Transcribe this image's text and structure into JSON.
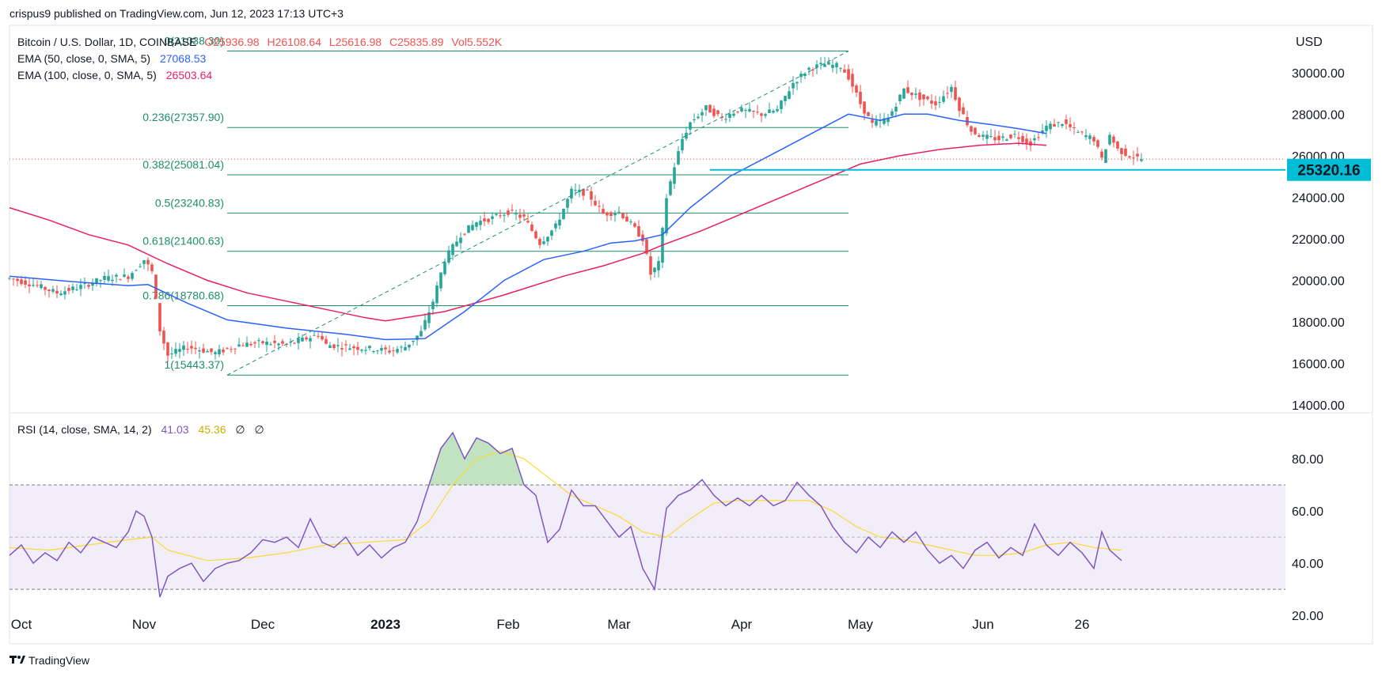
{
  "header": {
    "published": "crispus9 published on TradingView.com, Jun 12, 2023 17:13 UTC+3"
  },
  "footer": {
    "brand": "TradingView",
    "logo_icon": "tradingview-logo-icon"
  },
  "chart_data": {
    "type": "candlestick",
    "title": "Bitcoin / U.S. Dollar, 1D, COINBASE",
    "ohlc_label": {
      "o": "O25936.98",
      "h": "H26108.64",
      "l": "L25616.98",
      "c": "C25835.89",
      "vol": "Vol5.552K"
    },
    "currency": "USD",
    "ylim": [
      13700,
      32200
    ],
    "y_ticks": [
      "14000.00",
      "16000.00",
      "18000.00",
      "20000.00",
      "22000.00",
      "24000.00",
      "26000.00",
      "28000.00",
      "30000.00"
    ],
    "x_ticks": [
      {
        "label": "Oct",
        "day": 3
      },
      {
        "label": "Nov",
        "day": 34
      },
      {
        "label": "Dec",
        "day": 64
      },
      {
        "label": "2023",
        "day": 95
      },
      {
        "label": "Feb",
        "day": 126
      },
      {
        "label": "Mar",
        "day": 154
      },
      {
        "label": "Apr",
        "day": 185
      },
      {
        "label": "May",
        "day": 215
      },
      {
        "label": "Jun",
        "day": 246
      },
      {
        "label": "26",
        "day": 271
      }
    ],
    "last_price": {
      "value": 25835.89,
      "color": "#ef5350"
    },
    "horizontal_line": {
      "value": 25320.16,
      "label": "25320.16",
      "color": "#00bcd4"
    },
    "fibonacci": {
      "color": "#1e8e6e",
      "levels": [
        {
          "label": "0(31038.30)",
          "value": 31038.3
        },
        {
          "label": "0.236(27357.90)",
          "value": 27357.9
        },
        {
          "label": "0.382(25081.04)",
          "value": 25081.04
        },
        {
          "label": "0.5(23240.83)",
          "value": 23240.83
        },
        {
          "label": "0.618(21400.63)",
          "value": 21400.63
        },
        {
          "label": "0.786(18780.68)",
          "value": 18780.68
        },
        {
          "label": "1(15443.37)",
          "value": 15443.37
        }
      ]
    },
    "trend_line": {
      "from": {
        "day": 55,
        "value": 15443.37
      },
      "to": {
        "day": 212,
        "value": 31038.3
      }
    },
    "indicators": [
      {
        "label": "EMA (50, close, 0, SMA, 5)",
        "value": "27068.53",
        "color": "#2962ff"
      },
      {
        "label": "EMA (100, close, 0, SMA, 5)",
        "value": "26503.64",
        "color": "#e91e63"
      }
    ],
    "ema50": [
      [
        0,
        20200
      ],
      [
        15,
        19950
      ],
      [
        30,
        19750
      ],
      [
        35,
        19800
      ],
      [
        45,
        18900
      ],
      [
        55,
        18100
      ],
      [
        70,
        17700
      ],
      [
        85,
        17400
      ],
      [
        95,
        17150
      ],
      [
        105,
        17200
      ],
      [
        115,
        18500
      ],
      [
        125,
        20000
      ],
      [
        135,
        21000
      ],
      [
        145,
        21400
      ],
      [
        152,
        21800
      ],
      [
        158,
        21900
      ],
      [
        165,
        22200
      ],
      [
        172,
        23500
      ],
      [
        182,
        25000
      ],
      [
        192,
        26000
      ],
      [
        202,
        27000
      ],
      [
        212,
        28000
      ],
      [
        220,
        27700
      ],
      [
        226,
        28000
      ],
      [
        232,
        28000
      ],
      [
        240,
        27700
      ],
      [
        248,
        27500
      ],
      [
        255,
        27300
      ],
      [
        262,
        27068
      ]
    ],
    "ema100": [
      [
        0,
        23500
      ],
      [
        10,
        22900
      ],
      [
        20,
        22200
      ],
      [
        30,
        21700
      ],
      [
        40,
        20800
      ],
      [
        50,
        20000
      ],
      [
        60,
        19400
      ],
      [
        70,
        19000
      ],
      [
        80,
        18600
      ],
      [
        90,
        18200
      ],
      [
        95,
        18050
      ],
      [
        110,
        18500
      ],
      [
        125,
        19300
      ],
      [
        140,
        20200
      ],
      [
        150,
        20700
      ],
      [
        160,
        21300
      ],
      [
        165,
        21700
      ],
      [
        175,
        22400
      ],
      [
        185,
        23200
      ],
      [
        195,
        24000
      ],
      [
        205,
        24800
      ],
      [
        215,
        25600
      ],
      [
        225,
        26000
      ],
      [
        235,
        26300
      ],
      [
        245,
        26500
      ],
      [
        255,
        26600
      ],
      [
        262,
        26503
      ]
    ],
    "candles_path": [
      [
        0,
        20100
      ],
      [
        6,
        19800
      ],
      [
        12,
        19400
      ],
      [
        18,
        19700
      ],
      [
        24,
        20100
      ],
      [
        30,
        20200
      ],
      [
        34,
        21000
      ],
      [
        36,
        20400
      ],
      [
        38,
        17600
      ],
      [
        40,
        16400
      ],
      [
        45,
        16800
      ],
      [
        52,
        16500
      ],
      [
        58,
        16900
      ],
      [
        64,
        17000
      ],
      [
        70,
        16900
      ],
      [
        75,
        17200
      ],
      [
        78,
        17400
      ],
      [
        80,
        16900
      ],
      [
        85,
        16800
      ],
      [
        92,
        16700
      ],
      [
        96,
        16600
      ],
      [
        100,
        16800
      ],
      [
        104,
        17500
      ],
      [
        107,
        19000
      ],
      [
        110,
        21000
      ],
      [
        114,
        22200
      ],
      [
        118,
        22800
      ],
      [
        122,
        23000
      ],
      [
        126,
        23300
      ],
      [
        130,
        23000
      ],
      [
        134,
        21800
      ],
      [
        138,
        22600
      ],
      [
        142,
        24300
      ],
      [
        146,
        24200
      ],
      [
        150,
        23200
      ],
      [
        154,
        23300
      ],
      [
        157,
        22700
      ],
      [
        160,
        22000
      ],
      [
        162,
        20300
      ],
      [
        164,
        20800
      ],
      [
        166,
        24000
      ],
      [
        168,
        25500
      ],
      [
        170,
        26800
      ],
      [
        172,
        27600
      ],
      [
        176,
        28300
      ],
      [
        180,
        27800
      ],
      [
        184,
        28200
      ],
      [
        190,
        28000
      ],
      [
        194,
        28200
      ],
      [
        198,
        29500
      ],
      [
        202,
        30200
      ],
      [
        206,
        30400
      ],
      [
        210,
        30300
      ],
      [
        212,
        29800
      ],
      [
        215,
        28500
      ],
      [
        218,
        27500
      ],
      [
        222,
        27800
      ],
      [
        226,
        29200
      ],
      [
        230,
        28800
      ],
      [
        234,
        28500
      ],
      [
        238,
        29300
      ],
      [
        240,
        28300
      ],
      [
        243,
        27200
      ],
      [
        246,
        26900
      ],
      [
        250,
        26800
      ],
      [
        254,
        27000
      ],
      [
        258,
        26600
      ],
      [
        262,
        27400
      ],
      [
        266,
        27600
      ],
      [
        270,
        27100
      ],
      [
        274,
        26800
      ],
      [
        276,
        25800
      ],
      [
        278,
        27000
      ],
      [
        280,
        26300
      ],
      [
        283,
        26000
      ],
      [
        286,
        25836
      ]
    ],
    "rsi": {
      "label": "RSI (14, close, SMA, 14, 2)",
      "value": "41.03",
      "value_color": "#7e57c2",
      "sma_value": "45.36",
      "sma_color": "#fdd835",
      "extra": [
        "∅",
        "∅"
      ],
      "ylim": [
        17,
        97
      ],
      "y_ticks": [
        "20.00",
        "40.00",
        "60.00",
        "80.00"
      ],
      "band": [
        30,
        70
      ],
      "mid": 50,
      "values": [
        [
          0,
          43
        ],
        [
          3,
          47
        ],
        [
          6,
          40
        ],
        [
          9,
          44
        ],
        [
          12,
          41
        ],
        [
          15,
          48
        ],
        [
          18,
          44
        ],
        [
          21,
          50
        ],
        [
          24,
          48
        ],
        [
          27,
          46
        ],
        [
          30,
          52
        ],
        [
          32,
          60
        ],
        [
          34,
          58
        ],
        [
          36,
          50
        ],
        [
          38,
          27
        ],
        [
          40,
          35
        ],
        [
          43,
          38
        ],
        [
          46,
          40
        ],
        [
          49,
          33
        ],
        [
          52,
          38
        ],
        [
          55,
          40
        ],
        [
          58,
          41
        ],
        [
          61,
          44
        ],
        [
          64,
          49
        ],
        [
          67,
          48
        ],
        [
          70,
          50
        ],
        [
          73,
          46
        ],
        [
          76,
          57
        ],
        [
          79,
          48
        ],
        [
          82,
          46
        ],
        [
          85,
          50
        ],
        [
          88,
          43
        ],
        [
          91,
          47
        ],
        [
          94,
          42
        ],
        [
          97,
          46
        ],
        [
          100,
          48
        ],
        [
          103,
          56
        ],
        [
          106,
          70
        ],
        [
          109,
          84
        ],
        [
          112,
          90
        ],
        [
          115,
          80
        ],
        [
          118,
          88
        ],
        [
          121,
          86
        ],
        [
          124,
          82
        ],
        [
          127,
          84
        ],
        [
          130,
          70
        ],
        [
          133,
          66
        ],
        [
          136,
          48
        ],
        [
          139,
          53
        ],
        [
          142,
          68
        ],
        [
          145,
          62
        ],
        [
          148,
          62
        ],
        [
          151,
          56
        ],
        [
          154,
          50
        ],
        [
          157,
          54
        ],
        [
          160,
          38
        ],
        [
          163,
          30
        ],
        [
          166,
          61
        ],
        [
          169,
          66
        ],
        [
          172,
          68
        ],
        [
          175,
          72
        ],
        [
          178,
          66
        ],
        [
          181,
          62
        ],
        [
          184,
          65
        ],
        [
          187,
          62
        ],
        [
          190,
          66
        ],
        [
          193,
          62
        ],
        [
          196,
          64
        ],
        [
          199,
          71
        ],
        [
          202,
          66
        ],
        [
          205,
          62
        ],
        [
          208,
          54
        ],
        [
          211,
          48
        ],
        [
          214,
          44
        ],
        [
          217,
          50
        ],
        [
          220,
          46
        ],
        [
          223,
          52
        ],
        [
          226,
          48
        ],
        [
          229,
          52
        ],
        [
          232,
          45
        ],
        [
          235,
          40
        ],
        [
          238,
          43
        ],
        [
          241,
          38
        ],
        [
          244,
          45
        ],
        [
          247,
          48
        ],
        [
          250,
          42
        ],
        [
          253,
          46
        ],
        [
          256,
          43
        ],
        [
          259,
          55
        ],
        [
          262,
          47
        ],
        [
          265,
          43
        ],
        [
          268,
          48
        ],
        [
          271,
          44
        ],
        [
          274,
          38
        ],
        [
          276,
          52
        ],
        [
          278,
          45
        ],
        [
          281,
          41
        ]
      ],
      "sma": [
        [
          0,
          46
        ],
        [
          10,
          45
        ],
        [
          20,
          47
        ],
        [
          30,
          49
        ],
        [
          36,
          50
        ],
        [
          40,
          45
        ],
        [
          50,
          41
        ],
        [
          60,
          42
        ],
        [
          70,
          44
        ],
        [
          80,
          47
        ],
        [
          90,
          48
        ],
        [
          100,
          49
        ],
        [
          106,
          56
        ],
        [
          112,
          70
        ],
        [
          118,
          80
        ],
        [
          124,
          83
        ],
        [
          130,
          80
        ],
        [
          136,
          73
        ],
        [
          142,
          66
        ],
        [
          148,
          62
        ],
        [
          154,
          58
        ],
        [
          160,
          52
        ],
        [
          166,
          50
        ],
        [
          172,
          57
        ],
        [
          178,
          63
        ],
        [
          184,
          64
        ],
        [
          190,
          64
        ],
        [
          196,
          64
        ],
        [
          202,
          64
        ],
        [
          208,
          60
        ],
        [
          214,
          54
        ],
        [
          220,
          50
        ],
        [
          226,
          49
        ],
        [
          232,
          47
        ],
        [
          238,
          45
        ],
        [
          244,
          43
        ],
        [
          250,
          43
        ],
        [
          256,
          44
        ],
        [
          262,
          47
        ],
        [
          268,
          48
        ],
        [
          274,
          46
        ],
        [
          281,
          45
        ]
      ]
    }
  }
}
